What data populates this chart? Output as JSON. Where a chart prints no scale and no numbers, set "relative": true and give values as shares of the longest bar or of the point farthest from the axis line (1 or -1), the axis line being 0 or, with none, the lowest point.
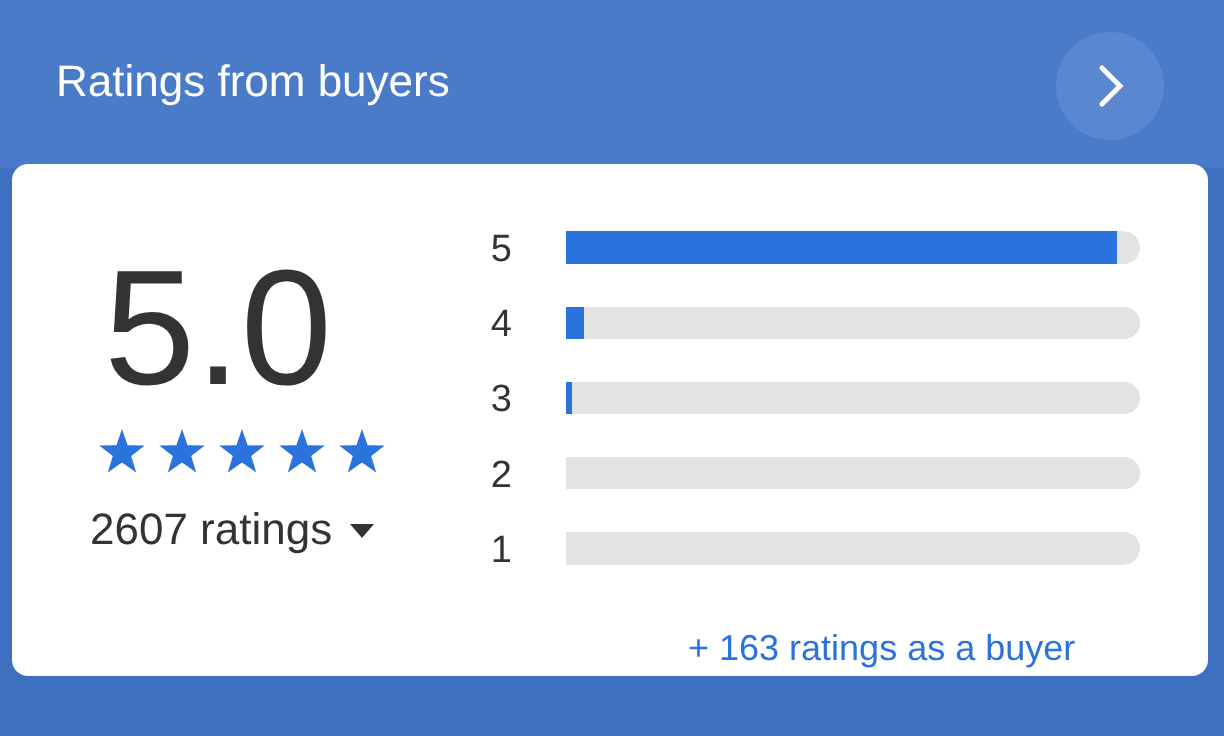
{
  "chart_data": {
    "type": "bar",
    "orientation": "horizontal",
    "relative": true,
    "stacked": true,
    "title": "Ratings from buyers",
    "categories": [
      "5",
      "4",
      "3",
      "2",
      "1"
    ],
    "series": [
      {
        "color": "#2b73dc",
        "values": [
          0.96,
          0.031,
          0.01,
          0,
          0
        ]
      },
      {
        "color": "#e3e3e3",
        "values": [
          0.04,
          0.969,
          0.99,
          1,
          1
        ]
      }
    ],
    "annotations": [
      "5.0",
      "2607 ratings",
      "+ 163 ratings as a buyer"
    ]
  }
}
